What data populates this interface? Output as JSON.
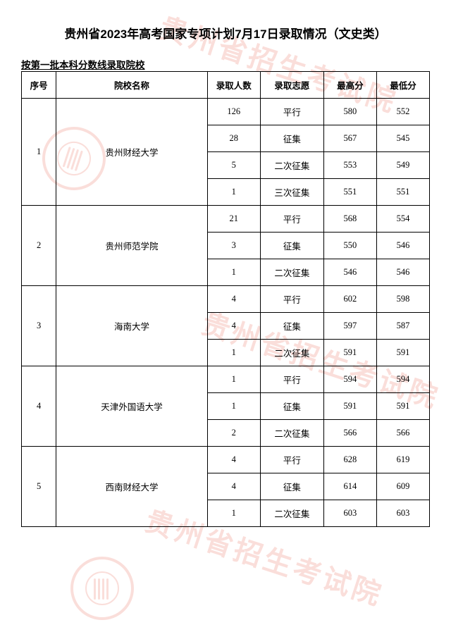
{
  "title": "贵州省2023年高考国家专项计划7月17日录取情况（文史类）",
  "subtitle": "按第一批本科分数线录取院校",
  "headers": {
    "seq": "序号",
    "name": "院校名称",
    "count": "录取人数",
    "type": "录取志愿",
    "high": "最高分",
    "low": "最低分"
  },
  "schools": [
    {
      "seq": "1",
      "name": "贵州财经大学",
      "rows": [
        {
          "count": "126",
          "type": "平行",
          "high": "580",
          "low": "552"
        },
        {
          "count": "28",
          "type": "征集",
          "high": "567",
          "low": "545"
        },
        {
          "count": "5",
          "type": "二次征集",
          "high": "553",
          "low": "549"
        },
        {
          "count": "1",
          "type": "三次征集",
          "high": "551",
          "low": "551"
        }
      ]
    },
    {
      "seq": "2",
      "name": "贵州师范学院",
      "rows": [
        {
          "count": "21",
          "type": "平行",
          "high": "568",
          "low": "554"
        },
        {
          "count": "3",
          "type": "征集",
          "high": "550",
          "low": "546"
        },
        {
          "count": "1",
          "type": "二次征集",
          "high": "546",
          "low": "546"
        }
      ]
    },
    {
      "seq": "3",
      "name": "海南大学",
      "rows": [
        {
          "count": "4",
          "type": "平行",
          "high": "602",
          "low": "598"
        },
        {
          "count": "4",
          "type": "征集",
          "high": "597",
          "low": "587"
        },
        {
          "count": "1",
          "type": "二次征集",
          "high": "591",
          "low": "591"
        }
      ]
    },
    {
      "seq": "4",
      "name": "天津外国语大学",
      "rows": [
        {
          "count": "1",
          "type": "平行",
          "high": "594",
          "low": "594"
        },
        {
          "count": "1",
          "type": "征集",
          "high": "591",
          "low": "591"
        },
        {
          "count": "2",
          "type": "二次征集",
          "high": "566",
          "low": "566"
        }
      ]
    },
    {
      "seq": "5",
      "name": "西南财经大学",
      "rows": [
        {
          "count": "4",
          "type": "平行",
          "high": "628",
          "low": "619"
        },
        {
          "count": "4",
          "type": "征集",
          "high": "614",
          "low": "609"
        },
        {
          "count": "1",
          "type": "二次征集",
          "high": "603",
          "low": "603"
        }
      ]
    }
  ],
  "watermark_text": "贵州省招生考试院",
  "colors": {
    "watermark": "#e94f3a",
    "text": "#000000",
    "border": "#000000",
    "background": "#ffffff"
  }
}
